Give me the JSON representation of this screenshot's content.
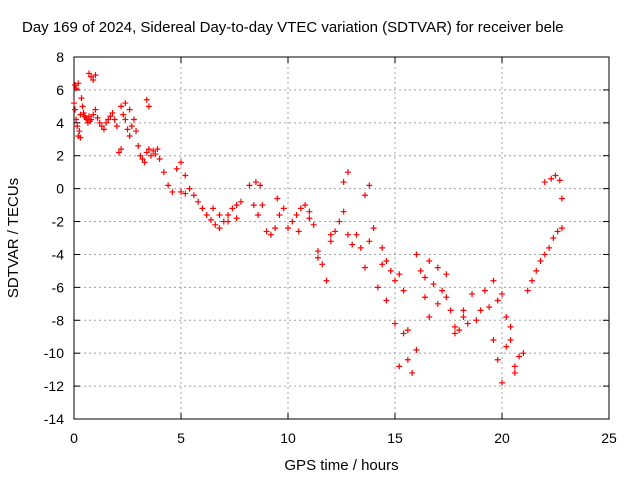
{
  "chart_data": {
    "type": "scatter",
    "title": "Day 169 of 2024, Sidereal Day-to-day VTEC variation (SDTVAR) for receiver bele",
    "xlabel": "GPS time / hours",
    "ylabel": "SDTVAR / TECUs",
    "xlim": [
      0,
      25
    ],
    "ylim": [
      -14,
      8
    ],
    "xticks": [
      0,
      5,
      10,
      15,
      20,
      25
    ],
    "yticks": [
      -14,
      -12,
      -10,
      -8,
      -6,
      -4,
      -2,
      0,
      2,
      4,
      6,
      8
    ],
    "grid": true,
    "marker": "+",
    "color": "#ff0000",
    "series": [
      {
        "name": "SDTVAR",
        "x": [
          0.0,
          0.05,
          0.1,
          0.15,
          0.2,
          0.25,
          0.3,
          0.35,
          0.4,
          0.45,
          0.5,
          0.55,
          0.6,
          0.65,
          0.7,
          0.75,
          0.8,
          0.9,
          1.0,
          1.1,
          1.2,
          1.3,
          1.4,
          1.5,
          1.6,
          1.7,
          1.8,
          1.9,
          2.0,
          2.1,
          2.2,
          2.3,
          2.4,
          2.5,
          2.6,
          2.7,
          2.8,
          2.9,
          3.0,
          3.1,
          3.2,
          3.3,
          3.4,
          3.5,
          3.6,
          3.7,
          3.8,
          3.9,
          4.0,
          4.2,
          4.4,
          4.6,
          4.8,
          5.0,
          5.2,
          5.4,
          5.6,
          5.8,
          6.0,
          6.2,
          6.4,
          6.6,
          6.8,
          7.0,
          7.2,
          7.4,
          7.6,
          7.8,
          8.2,
          8.4,
          8.6,
          8.8,
          9.0,
          9.2,
          9.4,
          9.6,
          9.8,
          10.0,
          10.2,
          10.4,
          10.6,
          10.8,
          11.0,
          11.2,
          11.4,
          11.6,
          11.8,
          12.0,
          12.2,
          12.4,
          12.6,
          12.8,
          13.0,
          13.2,
          13.4,
          13.6,
          13.8,
          14.0,
          14.2,
          14.4,
          14.6,
          14.8,
          15.0,
          15.2,
          15.4,
          15.6,
          15.8,
          16.0,
          16.2,
          16.4,
          16.6,
          16.8,
          17.0,
          17.2,
          17.4,
          17.6,
          17.8,
          18.0,
          18.2,
          18.4,
          18.6,
          18.8,
          19.0,
          19.2,
          19.4,
          19.6,
          19.8,
          20.0,
          20.2,
          20.4,
          20.6,
          20.8,
          21.0,
          21.2,
          21.4,
          21.6,
          21.8,
          22.0,
          22.2,
          22.4,
          22.6,
          22.8,
          0.05,
          0.1,
          0.2,
          0.3,
          0.7,
          0.8,
          0.9,
          1.0,
          2.2,
          2.4,
          2.6,
          3.4,
          3.5,
          5.0,
          5.2,
          6.5,
          6.8,
          7.2,
          7.6,
          8.5,
          8.7,
          9.5,
          10.5,
          11.0,
          11.4,
          12.0,
          12.6,
          12.8,
          13.6,
          13.8,
          14.4,
          14.6,
          15.0,
          15.2,
          15.4,
          15.6,
          16.0,
          16.4,
          16.6,
          17.0,
          17.4,
          17.8,
          18.2,
          19.6,
          19.8,
          20.0,
          20.2,
          20.4,
          20.6,
          22.0,
          22.3,
          22.5,
          22.7,
          22.8
        ],
        "y": [
          5.2,
          4.8,
          4.2,
          3.8,
          3.2,
          3.5,
          4.5,
          5.5,
          5.0,
          4.6,
          4.4,
          4.3,
          4.2,
          4.0,
          4.4,
          4.1,
          4.2,
          4.5,
          4.8,
          4.3,
          4.0,
          3.8,
          3.6,
          4.0,
          4.2,
          4.4,
          4.6,
          4.2,
          3.8,
          2.2,
          2.4,
          4.5,
          4.2,
          3.6,
          3.2,
          3.8,
          4.2,
          3.5,
          2.6,
          2.0,
          1.8,
          1.6,
          2.2,
          2.4,
          2.0,
          2.3,
          2.1,
          2.4,
          1.8,
          1.0,
          0.2,
          -0.2,
          1.2,
          1.6,
          0.8,
          0.0,
          -0.4,
          -0.8,
          -1.2,
          -1.6,
          -1.9,
          -2.2,
          -2.4,
          -2.0,
          -1.6,
          -1.2,
          -1.0,
          -0.8,
          0.2,
          -1.0,
          -1.6,
          -1.0,
          -2.6,
          -2.8,
          -2.4,
          -1.6,
          -1.2,
          -2.4,
          -2.0,
          -1.6,
          -1.2,
          -1.0,
          -1.4,
          -2.2,
          -3.8,
          -4.6,
          -5.6,
          -3.2,
          -2.6,
          -2.0,
          -1.4,
          -2.8,
          -3.4,
          -2.8,
          -3.6,
          -4.8,
          -3.2,
          -2.4,
          -6.0,
          -3.6,
          -4.4,
          -5.0,
          -5.6,
          -5.2,
          -8.8,
          -10.4,
          -11.2,
          -9.8,
          -5.0,
          -6.6,
          -4.4,
          -5.8,
          -7.0,
          -6.2,
          -5.2,
          -7.4,
          -8.8,
          -8.6,
          -7.8,
          -8.2,
          -6.4,
          -8.0,
          -7.4,
          -6.2,
          -7.2,
          -9.2,
          -10.4,
          -11.8,
          -9.6,
          -8.4,
          -10.8,
          -10.2,
          -10.0,
          -6.2,
          -5.6,
          -5.0,
          -4.4,
          -4.0,
          -3.6,
          -3.0,
          -2.6,
          -2.4,
          6.3,
          6.1,
          6.4,
          3.1,
          7.0,
          6.8,
          6.6,
          6.9,
          5.0,
          5.2,
          4.8,
          5.4,
          5.0,
          -0.2,
          -0.3,
          -1.2,
          -1.6,
          -2.0,
          -1.8,
          0.4,
          0.2,
          -0.6,
          -2.6,
          -1.8,
          -4.2,
          -2.8,
          0.4,
          1.0,
          -0.4,
          0.2,
          -4.6,
          -6.8,
          -8.2,
          -10.8,
          -6.2,
          -8.6,
          -4.0,
          -5.4,
          -7.8,
          -4.8,
          -6.6,
          -8.4,
          -7.4,
          -5.6,
          -6.8,
          -6.4,
          -7.8,
          -9.2,
          -11.2,
          0.4,
          0.6,
          0.8,
          0.5,
          -0.6
        ]
      }
    ]
  }
}
